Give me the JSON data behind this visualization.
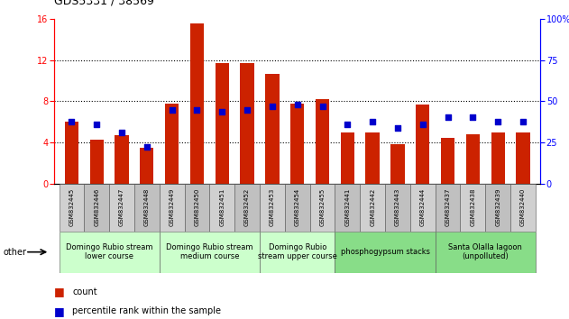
{
  "title": "GDS5331 / 38569",
  "samples": [
    "GSM832445",
    "GSM832446",
    "GSM832447",
    "GSM832448",
    "GSM832449",
    "GSM832450",
    "GSM832451",
    "GSM832452",
    "GSM832453",
    "GSM832454",
    "GSM832455",
    "GSM832441",
    "GSM832442",
    "GSM832443",
    "GSM832444",
    "GSM832437",
    "GSM832438",
    "GSM832439",
    "GSM832440"
  ],
  "count": [
    6.0,
    4.3,
    4.7,
    3.5,
    7.8,
    15.6,
    11.7,
    11.7,
    10.7,
    7.8,
    8.2,
    5.0,
    5.0,
    3.8,
    7.7,
    4.4,
    4.8,
    5.0,
    5.0
  ],
  "percentile_pct": [
    37.5,
    36.0,
    31.0,
    22.5,
    45.0,
    45.0,
    43.8,
    45.0,
    46.9,
    48.1,
    46.9,
    36.0,
    37.5,
    34.0,
    36.0,
    40.6,
    40.6,
    37.5,
    37.5
  ],
  "groups": [
    {
      "label": "Domingo Rubio stream\nlower course",
      "start": 0,
      "end": 3,
      "color": "#ccffcc"
    },
    {
      "label": "Domingo Rubio stream\nmedium course",
      "start": 4,
      "end": 7,
      "color": "#ccffcc"
    },
    {
      "label": "Domingo Rubio\nstream upper course",
      "start": 8,
      "end": 10,
      "color": "#ccffcc"
    },
    {
      "label": "phosphogypsum stacks",
      "start": 11,
      "end": 14,
      "color": "#88dd88"
    },
    {
      "label": "Santa Olalla lagoon\n(unpolluted)",
      "start": 15,
      "end": 18,
      "color": "#88dd88"
    }
  ],
  "bar_color": "#cc2200",
  "dot_color": "#0000cc",
  "ylim_left": [
    0,
    16
  ],
  "ylim_right": [
    0,
    100
  ],
  "yticks_left": [
    0,
    4,
    8,
    12,
    16
  ],
  "yticks_right": [
    0,
    25,
    50,
    75,
    100
  ],
  "bar_width": 0.55,
  "dot_size": 18,
  "title_fontsize": 9,
  "tick_fontsize": 7,
  "sample_fontsize": 5,
  "group_fontsize": 6
}
